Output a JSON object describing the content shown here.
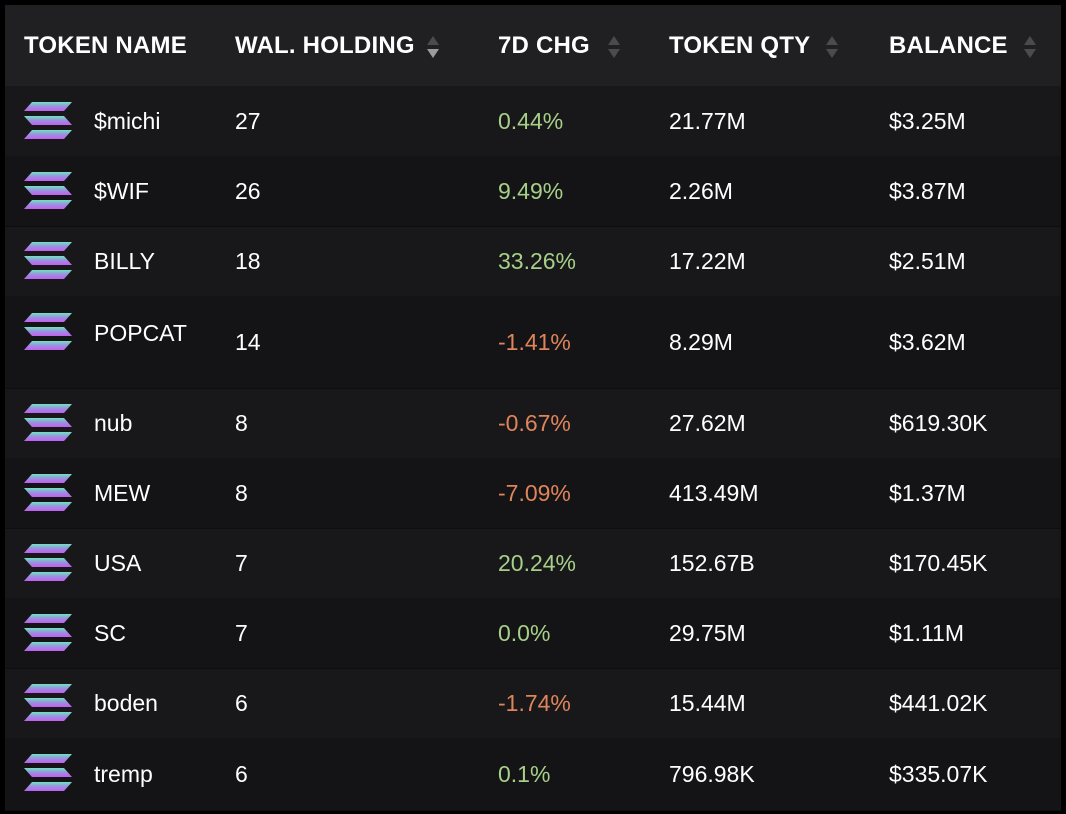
{
  "columns": {
    "token_name": "TOKEN NAME",
    "wal_holding": "WAL. HOLDING",
    "chg_7d": "7D CHG",
    "token_qty": "TOKEN QTY",
    "balance": "BALANCE"
  },
  "logo_icon": "solana-logo-icon",
  "colors": {
    "positive": "#a6cf87",
    "negative": "#df845b",
    "header_bg": "#202023",
    "row_bg": "#18181b"
  },
  "rows": [
    {
      "name": "$michi",
      "holding": "27",
      "change": "0.44%",
      "direction": "positive",
      "qty": "21.77M",
      "balance": "$3.25M"
    },
    {
      "name": "$WIF",
      "holding": "26",
      "change": "9.49%",
      "direction": "positive",
      "qty": "2.26M",
      "balance": "$3.87M"
    },
    {
      "name": "BILLY",
      "holding": "18",
      "change": "33.26%",
      "direction": "positive",
      "qty": "17.22M",
      "balance": "$2.51M"
    },
    {
      "name": "POPCAT",
      "holding": "14",
      "change": "-1.41%",
      "direction": "negative",
      "qty": "8.29M",
      "balance": "$3.62M"
    },
    {
      "name": "nub",
      "holding": "8",
      "change": "-0.67%",
      "direction": "negative",
      "qty": "27.62M",
      "balance": "$619.30K"
    },
    {
      "name": "MEW",
      "holding": "8",
      "change": "-7.09%",
      "direction": "negative",
      "qty": "413.49M",
      "balance": "$1.37M"
    },
    {
      "name": "USA",
      "holding": "7",
      "change": "20.24%",
      "direction": "positive",
      "qty": "152.67B",
      "balance": "$170.45K"
    },
    {
      "name": "SC",
      "holding": "7",
      "change": "0.0%",
      "direction": "positive",
      "qty": "29.75M",
      "balance": "$1.11M"
    },
    {
      "name": "boden",
      "holding": "6",
      "change": "-1.74%",
      "direction": "negative",
      "qty": "15.44M",
      "balance": "$441.02K"
    },
    {
      "name": "tremp",
      "holding": "6",
      "change": "0.1%",
      "direction": "positive",
      "qty": "796.98K",
      "balance": "$335.07K"
    }
  ]
}
